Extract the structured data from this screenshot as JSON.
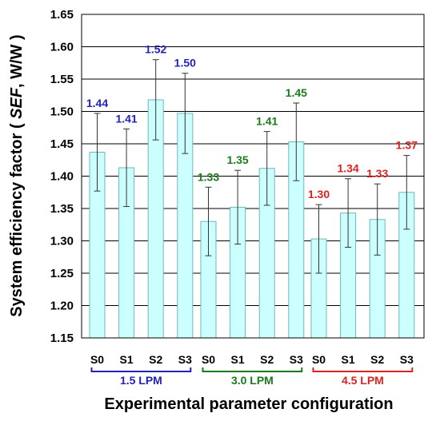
{
  "chart_data": {
    "type": "bar",
    "ylabel_prefix": "System efficiency factor ( ",
    "ylabel_italic": "SEF",
    "ylabel_suffix": ", W/W )",
    "xlabel": "Experimental parameter configuration",
    "ylim": [
      1.15,
      1.65
    ],
    "yticks": [
      "1.15",
      "1.20",
      "1.25",
      "1.30",
      "1.35",
      "1.40",
      "1.45",
      "1.50",
      "1.55",
      "1.60",
      "1.65"
    ],
    "grid": true,
    "bar_color": "#ccffff",
    "bar_edge": "#6fb7b7",
    "groups": [
      {
        "label": "1.5 LPM",
        "color": "#2222bb",
        "categories": [
          "S0",
          "S1",
          "S2",
          "S3"
        ],
        "values": [
          1.437,
          1.413,
          1.518,
          1.497
        ],
        "errors": [
          0.06,
          0.06,
          0.062,
          0.062
        ],
        "data_labels": [
          "1.44",
          "1.41",
          "1.52",
          "1.50"
        ]
      },
      {
        "label": "3.0 LPM",
        "color": "#1a7a1a",
        "categories": [
          "S0",
          "S1",
          "S2",
          "S3"
        ],
        "values": [
          1.33,
          1.352,
          1.412,
          1.453
        ],
        "errors": [
          0.053,
          0.057,
          0.057,
          0.06
        ],
        "data_labels": [
          "1.33",
          "1.35",
          "1.41",
          "1.45"
        ]
      },
      {
        "label": "4.5 LPM",
        "color": "#dd2222",
        "categories": [
          "S0",
          "S1",
          "S2",
          "S3"
        ],
        "values": [
          1.303,
          1.343,
          1.333,
          1.375
        ],
        "errors": [
          0.053,
          0.053,
          0.055,
          0.057
        ],
        "data_labels": [
          "1.30",
          "1.34",
          "1.33",
          "1.37"
        ]
      }
    ]
  }
}
